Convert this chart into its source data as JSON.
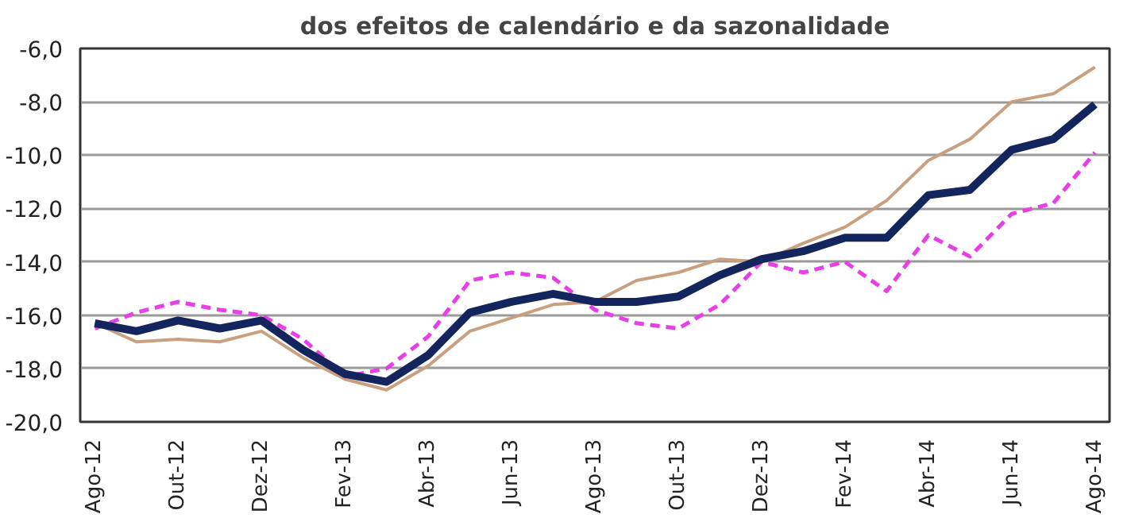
{
  "chart_data": {
    "type": "line",
    "title": "dos efeitos de calendário e da sazonalidade",
    "categories": [
      "Ago-12",
      null,
      "Out-12",
      null,
      "Dez-12",
      null,
      "Fev-13",
      null,
      "Abr-13",
      null,
      "Jun-13",
      null,
      "Ago-13",
      null,
      "Out-13",
      null,
      "Dez-13",
      null,
      "Fev-14",
      null,
      "Abr-14",
      null,
      "Jun-14",
      null,
      "Ago-14"
    ],
    "series": [
      {
        "color": "#c8a080",
        "values": [
          -16.3,
          -17.0,
          -16.9,
          -17.0,
          -16.6,
          -17.6,
          -18.4,
          -18.8,
          -17.9,
          -16.6,
          -16.1,
          -15.6,
          -15.5,
          -14.7,
          -14.4,
          -13.9,
          -14.0,
          -13.3,
          -12.7,
          -11.7,
          -10.2,
          -9.4,
          -8.0,
          -7.7,
          -6.7
        ]
      },
      {
        "color": "#e83ee8",
        "line_style": "dashed",
        "values": [
          -16.5,
          -15.9,
          -15.5,
          -15.8,
          -16.0,
          -16.9,
          -18.3,
          -18.0,
          -16.8,
          -14.7,
          -14.4,
          -14.6,
          -15.8,
          -16.3,
          -16.5,
          -15.6,
          -14.0,
          -14.4,
          -14.0,
          -15.1,
          -13.0,
          -13.8,
          -12.2,
          -11.8,
          -9.9
        ]
      },
      {
        "color": "#14255e",
        "values": [
          -16.3,
          -16.6,
          -16.2,
          -16.5,
          -16.2,
          -17.3,
          -18.2,
          -18.5,
          -17.5,
          -15.9,
          -15.5,
          -15.2,
          -15.5,
          -15.5,
          -15.3,
          -14.5,
          -13.9,
          -13.6,
          -13.1,
          -13.1,
          -11.5,
          -11.3,
          -9.8,
          -9.4,
          -8.1
        ]
      }
    ],
    "ylim": [
      -20,
      -6
    ],
    "yticks": [
      {
        "value": -20,
        "label": "-20,0"
      },
      {
        "value": -18,
        "label": "-18,0"
      },
      {
        "value": -16,
        "label": "-16,0"
      },
      {
        "value": -14,
        "label": "-14,0"
      },
      {
        "value": -12,
        "label": "-12,0"
      },
      {
        "value": -10,
        "label": "-10,0"
      },
      {
        "value": -8,
        "label": "-8,0"
      },
      {
        "value": -6,
        "label": "-6,0"
      }
    ],
    "grid": "y",
    "marker": "none",
    "line_style": "solid"
  }
}
